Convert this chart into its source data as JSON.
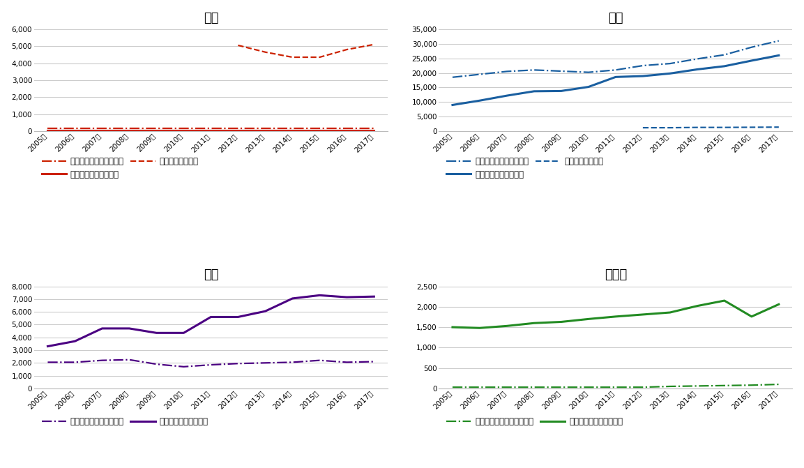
{
  "years": [
    2005,
    2006,
    2007,
    2008,
    2009,
    2010,
    2011,
    2012,
    2013,
    2014,
    2015,
    2016,
    2017
  ],
  "japan": {
    "title": "日本",
    "credit": [
      150,
      150,
      150,
      150,
      150,
      150,
      150,
      150,
      150,
      150,
      150,
      150,
      150
    ],
    "debit": [
      30,
      30,
      30,
      30,
      30,
      30,
      30,
      30,
      30,
      30,
      30,
      30,
      30
    ],
    "emoney_x": [
      7,
      8,
      9,
      10,
      11,
      12
    ],
    "emoney_y": [
      5050,
      4650,
      4350,
      4350,
      4800,
      5100
    ],
    "credit_label": "日本・クレジットカード",
    "debit_label": "日本・デビットカード",
    "emoney_label": "日本・電子マネー",
    "ylim": [
      0,
      6000
    ],
    "yticks": [
      0,
      1000,
      2000,
      3000,
      4000,
      5000,
      6000
    ],
    "color": "#CC2200"
  },
  "usa": {
    "title": "米国",
    "credit": [
      18500,
      19500,
      20500,
      21000,
      20600,
      20200,
      21000,
      22500,
      23200,
      24800,
      26200,
      28800,
      31000
    ],
    "debit": [
      9000,
      10500,
      12200,
      13700,
      13800,
      15200,
      18600,
      18900,
      19800,
      21200,
      22300,
      24200,
      26000
    ],
    "emoney_x": [
      7,
      8,
      9,
      10,
      11,
      12
    ],
    "emoney_y": [
      1200,
      1200,
      1300,
      1300,
      1350,
      1400
    ],
    "credit_label": "米国・クレジットカード",
    "debit_label": "米国・デビットカード",
    "emoney_label": "米国・電子マネー",
    "ylim": [
      0,
      35000
    ],
    "yticks": [
      0,
      5000,
      10000,
      15000,
      20000,
      25000,
      30000,
      35000
    ],
    "color": "#1A5FA0"
  },
  "uk": {
    "title": "英国",
    "credit": [
      2050,
      2050,
      2200,
      2250,
      1900,
      1700,
      1850,
      1950,
      2000,
      2050,
      2200,
      2050,
      2100
    ],
    "debit": [
      3300,
      3700,
      4700,
      4700,
      4350,
      4350,
      5600,
      5600,
      6050,
      7050,
      7300,
      7150,
      7200
    ],
    "credit_label": "英国・クレジットカード",
    "debit_label": "英国・デビットカード",
    "ylim": [
      0,
      8000
    ],
    "yticks": [
      0,
      1000,
      2000,
      3000,
      4000,
      5000,
      6000,
      7000,
      8000
    ],
    "color": "#4B0082"
  },
  "germany": {
    "title": "ドイツ",
    "credit": [
      30,
      30,
      30,
      30,
      30,
      30,
      30,
      30,
      50,
      60,
      70,
      80,
      100
    ],
    "debit": [
      1500,
      1480,
      1530,
      1600,
      1630,
      1700,
      1760,
      1810,
      1860,
      2020,
      2150,
      1760,
      2060
    ],
    "credit_label": "ドイツ・クレジットカード",
    "debit_label": "ドイツ・デビットカード",
    "ylim": [
      0,
      2500
    ],
    "yticks": [
      0,
      500,
      1000,
      1500,
      2000,
      2500
    ],
    "color": "#228B22"
  },
  "background_color": "#FFFFFF",
  "grid_color": "#CCCCCC",
  "title_fontsize": 13,
  "tick_fontsize": 7.5,
  "legend_fontsize": 8.5
}
